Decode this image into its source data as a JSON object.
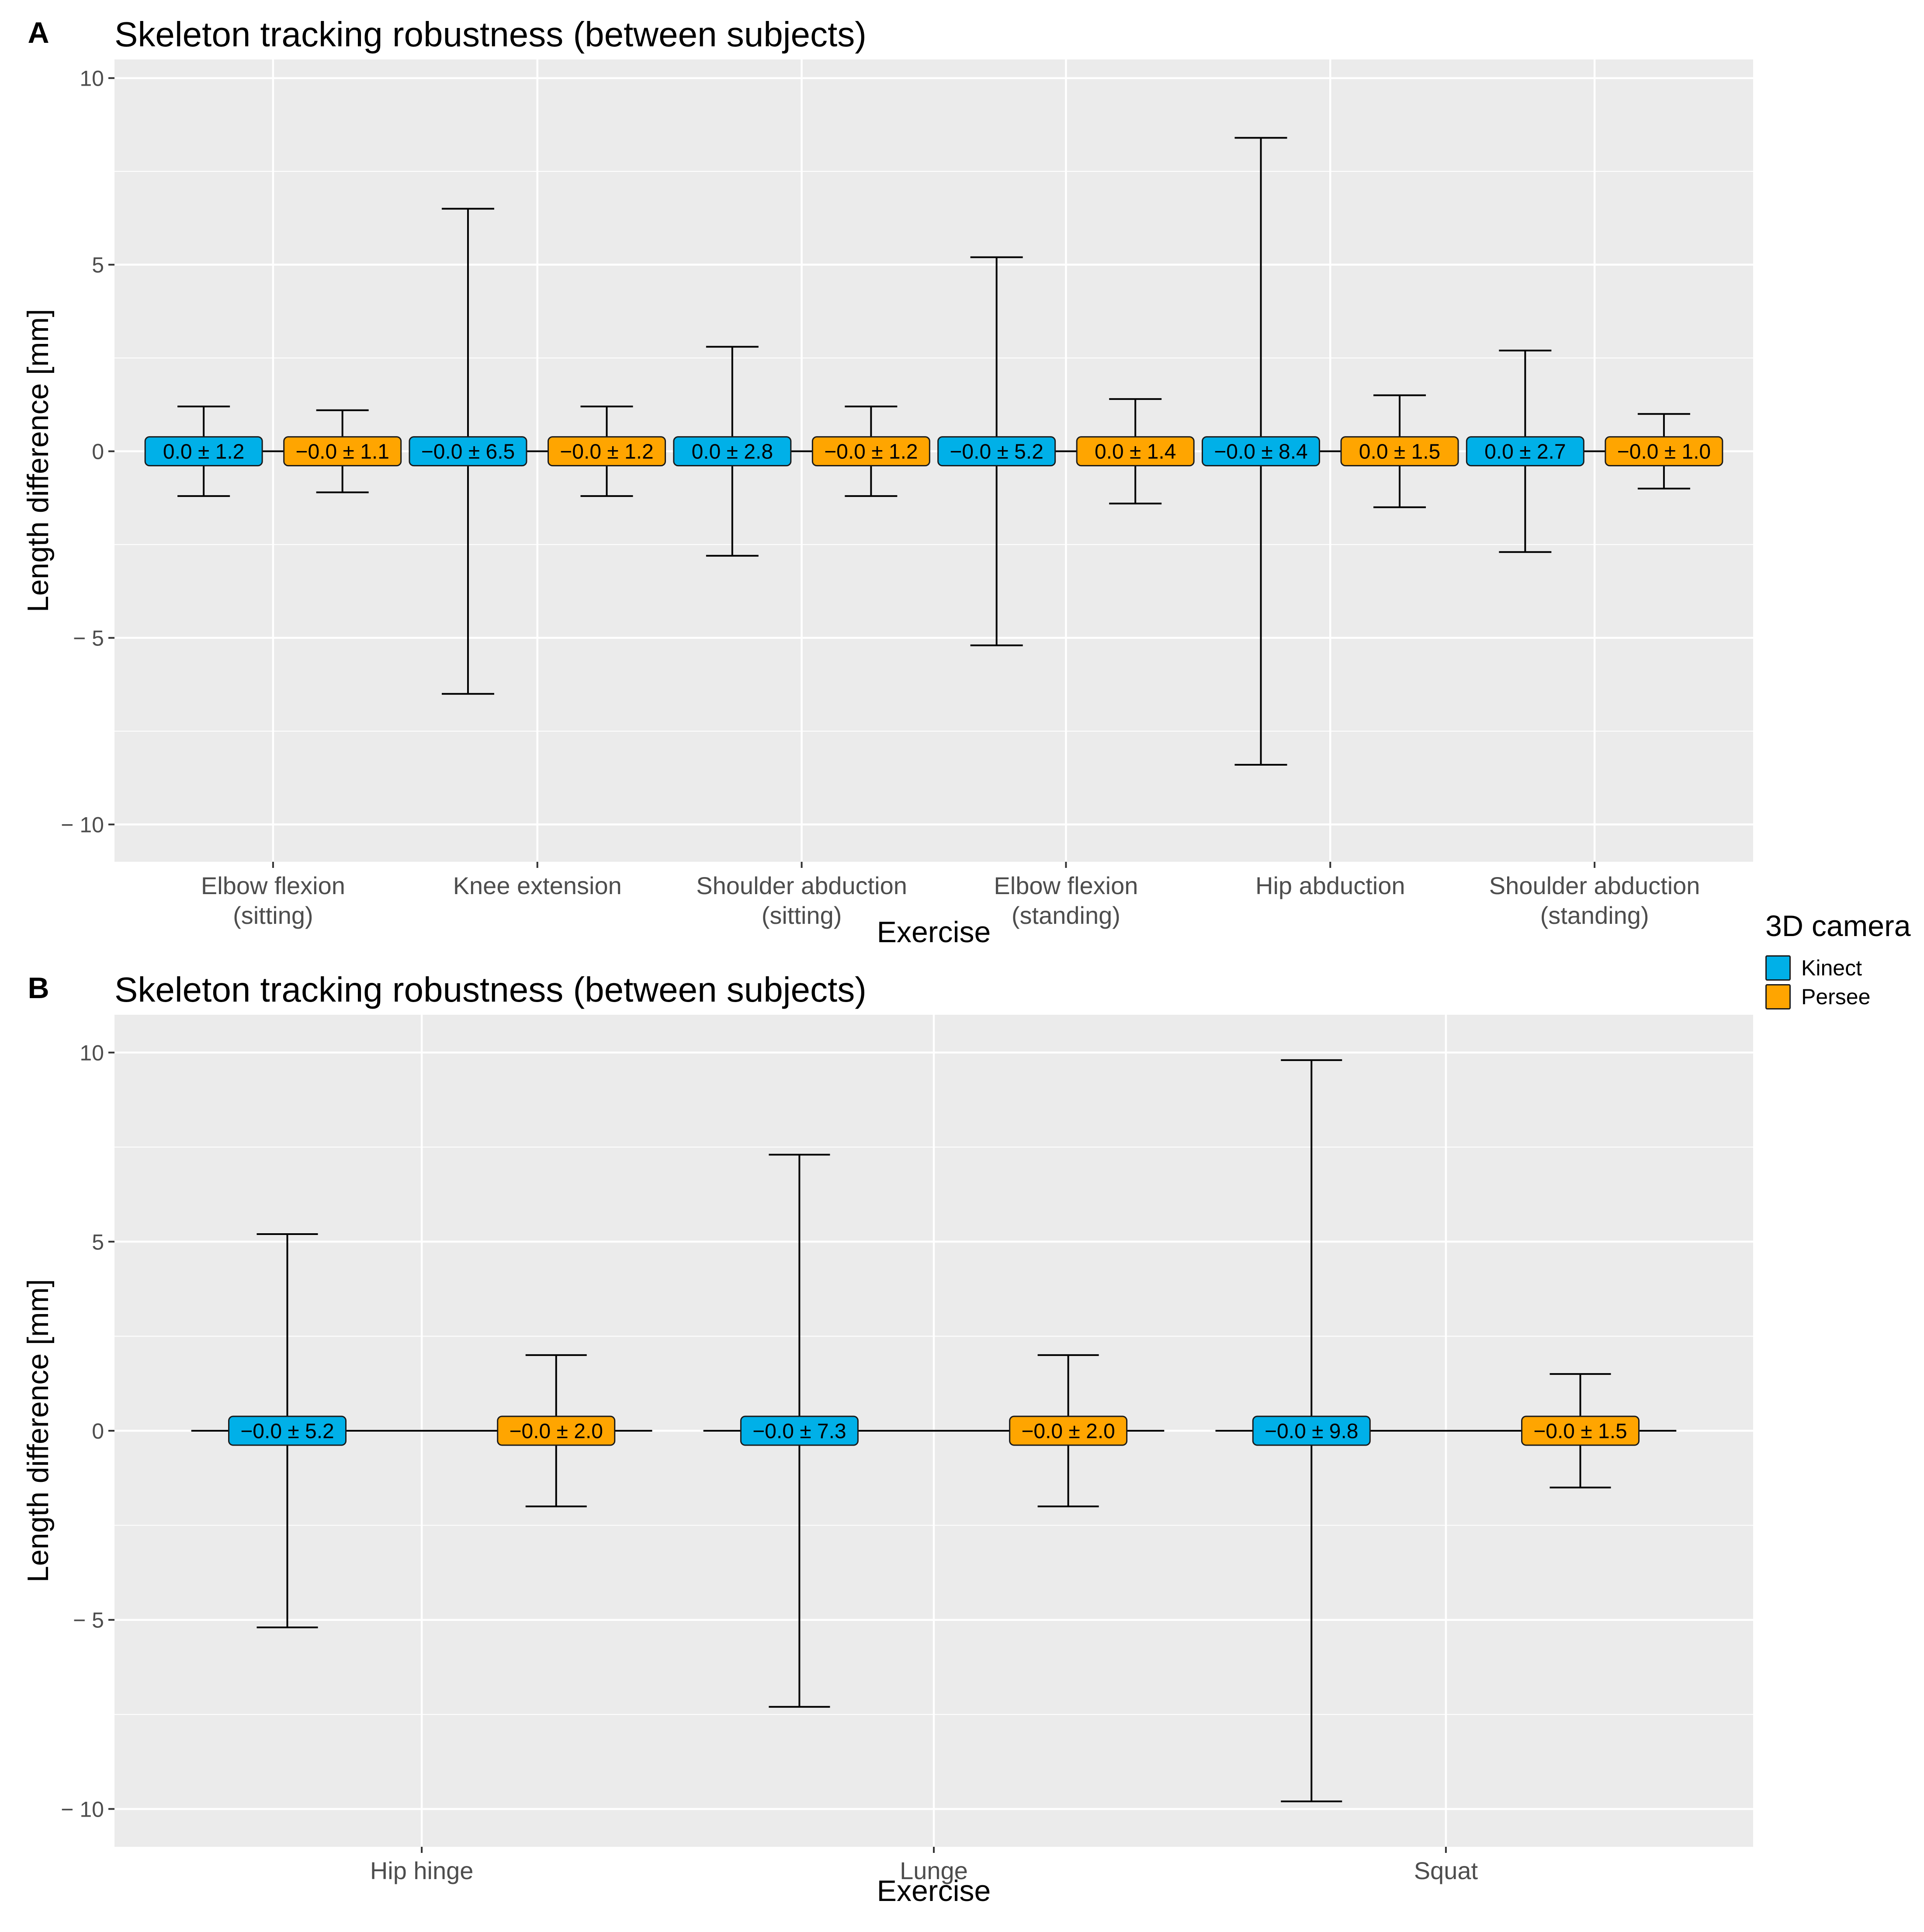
{
  "legend": {
    "title": "3D camera",
    "items": [
      {
        "name": "Kinect",
        "color": "#00b0e8"
      },
      {
        "name": "Persee",
        "color": "#ffa500"
      }
    ]
  },
  "chart_data": [
    {
      "type": "errorbar",
      "panel_label": "A",
      "title": "Skeleton tracking robustness (between subjects)",
      "xlabel": "Exercise",
      "ylabel": "Length difference [mm]",
      "ylim": [
        -11,
        10.5
      ],
      "yticks": [
        -10,
        -5,
        0,
        5,
        10
      ],
      "ytick_labels": [
        "− 10",
        "− 5",
        "0",
        "5",
        "10"
      ],
      "grid": true,
      "categories": [
        [
          "Elbow flexion",
          "(sitting)"
        ],
        [
          "Knee extension"
        ],
        [
          "Shoulder abduction",
          "(sitting)"
        ],
        [
          "Elbow flexion",
          "(standing)"
        ],
        [
          "Hip abduction"
        ],
        [
          "Shoulder abduction",
          "(standing)"
        ]
      ],
      "series": [
        {
          "name": "Kinect",
          "color": "#00b0e8",
          "mean": [
            0,
            0,
            0,
            0,
            0,
            0
          ],
          "sd": [
            1.2,
            6.5,
            2.8,
            5.2,
            8.4,
            2.7
          ],
          "labels": [
            "0.0 ± 1.2",
            "−0.0 ± 6.5",
            "0.0 ± 2.8",
            "−0.0 ± 5.2",
            "−0.0 ± 8.4",
            "0.0 ± 2.7"
          ]
        },
        {
          "name": "Persee",
          "color": "#ffa500",
          "mean": [
            0,
            0,
            0,
            0,
            0,
            0
          ],
          "sd": [
            1.1,
            1.2,
            1.2,
            1.4,
            1.5,
            1.0
          ],
          "labels": [
            "−0.0 ± 1.1",
            "−0.0 ± 1.2",
            "−0.0 ± 1.2",
            "0.0 ± 1.4",
            "0.0 ± 1.5",
            "−0.0 ± 1.0"
          ]
        }
      ]
    },
    {
      "type": "errorbar",
      "panel_label": "B",
      "title": "Skeleton tracking robustness (between subjects)",
      "xlabel": "Exercise",
      "ylabel": "Length difference [mm]",
      "ylim": [
        -11,
        11
      ],
      "yticks": [
        -10,
        -5,
        0,
        5,
        10
      ],
      "ytick_labels": [
        "− 10",
        "− 5",
        "0",
        "5",
        "10"
      ],
      "grid": true,
      "categories": [
        [
          "Hip hinge"
        ],
        [
          "Lunge"
        ],
        [
          "Squat"
        ]
      ],
      "series": [
        {
          "name": "Kinect",
          "color": "#00b0e8",
          "mean": [
            0,
            0,
            0
          ],
          "sd": [
            5.2,
            7.3,
            9.8
          ],
          "labels": [
            "−0.0 ± 5.2",
            "−0.0 ± 7.3",
            "−0.0 ± 9.8"
          ]
        },
        {
          "name": "Persee",
          "color": "#ffa500",
          "mean": [
            0,
            0,
            0
          ],
          "sd": [
            2.0,
            2.0,
            1.5
          ],
          "labels": [
            "−0.0 ± 2.0",
            "−0.0 ± 2.0",
            "−0.0 ± 1.5"
          ]
        }
      ]
    }
  ]
}
